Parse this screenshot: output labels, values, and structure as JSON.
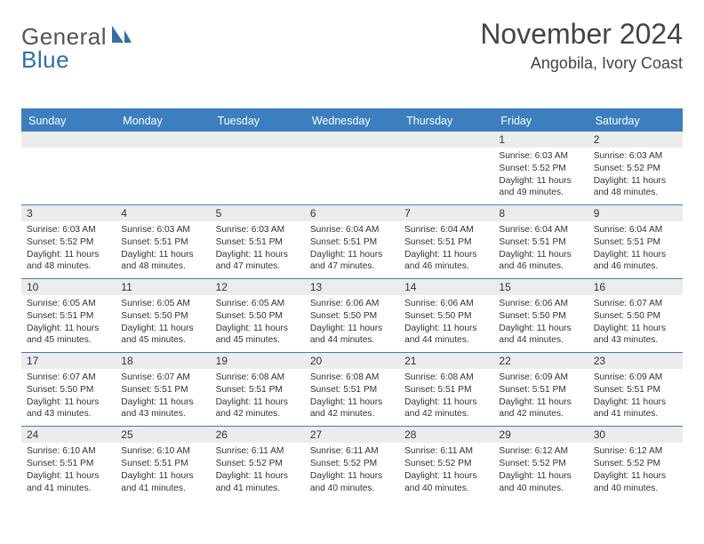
{
  "brand": {
    "word1": "General",
    "word2": "Blue",
    "text_color": "#555555",
    "accent_color": "#2f6fab"
  },
  "header": {
    "month_title": "November 2024",
    "location": "Angobila, Ivory Coast"
  },
  "colors": {
    "header_bg": "#3b7fbf",
    "header_fg": "#ffffff",
    "row_divider": "#3b7fbf",
    "daynum_bg": "#ececec",
    "text": "#333333",
    "background": "#ffffff"
  },
  "fonts": {
    "title_size": 32,
    "location_size": 18,
    "weekday_size": 12.5,
    "cell_size": 10.2
  },
  "weekdays": [
    "Sunday",
    "Monday",
    "Tuesday",
    "Wednesday",
    "Thursday",
    "Friday",
    "Saturday"
  ],
  "weeks": [
    [
      {
        "day": ""
      },
      {
        "day": ""
      },
      {
        "day": ""
      },
      {
        "day": ""
      },
      {
        "day": ""
      },
      {
        "day": "1",
        "sunrise": "Sunrise: 6:03 AM",
        "sunset": "Sunset: 5:52 PM",
        "daylight1": "Daylight: 11 hours",
        "daylight2": "and 49 minutes."
      },
      {
        "day": "2",
        "sunrise": "Sunrise: 6:03 AM",
        "sunset": "Sunset: 5:52 PM",
        "daylight1": "Daylight: 11 hours",
        "daylight2": "and 48 minutes."
      }
    ],
    [
      {
        "day": "3",
        "sunrise": "Sunrise: 6:03 AM",
        "sunset": "Sunset: 5:52 PM",
        "daylight1": "Daylight: 11 hours",
        "daylight2": "and 48 minutes."
      },
      {
        "day": "4",
        "sunrise": "Sunrise: 6:03 AM",
        "sunset": "Sunset: 5:51 PM",
        "daylight1": "Daylight: 11 hours",
        "daylight2": "and 48 minutes."
      },
      {
        "day": "5",
        "sunrise": "Sunrise: 6:03 AM",
        "sunset": "Sunset: 5:51 PM",
        "daylight1": "Daylight: 11 hours",
        "daylight2": "and 47 minutes."
      },
      {
        "day": "6",
        "sunrise": "Sunrise: 6:04 AM",
        "sunset": "Sunset: 5:51 PM",
        "daylight1": "Daylight: 11 hours",
        "daylight2": "and 47 minutes."
      },
      {
        "day": "7",
        "sunrise": "Sunrise: 6:04 AM",
        "sunset": "Sunset: 5:51 PM",
        "daylight1": "Daylight: 11 hours",
        "daylight2": "and 46 minutes."
      },
      {
        "day": "8",
        "sunrise": "Sunrise: 6:04 AM",
        "sunset": "Sunset: 5:51 PM",
        "daylight1": "Daylight: 11 hours",
        "daylight2": "and 46 minutes."
      },
      {
        "day": "9",
        "sunrise": "Sunrise: 6:04 AM",
        "sunset": "Sunset: 5:51 PM",
        "daylight1": "Daylight: 11 hours",
        "daylight2": "and 46 minutes."
      }
    ],
    [
      {
        "day": "10",
        "sunrise": "Sunrise: 6:05 AM",
        "sunset": "Sunset: 5:51 PM",
        "daylight1": "Daylight: 11 hours",
        "daylight2": "and 45 minutes."
      },
      {
        "day": "11",
        "sunrise": "Sunrise: 6:05 AM",
        "sunset": "Sunset: 5:50 PM",
        "daylight1": "Daylight: 11 hours",
        "daylight2": "and 45 minutes."
      },
      {
        "day": "12",
        "sunrise": "Sunrise: 6:05 AM",
        "sunset": "Sunset: 5:50 PM",
        "daylight1": "Daylight: 11 hours",
        "daylight2": "and 45 minutes."
      },
      {
        "day": "13",
        "sunrise": "Sunrise: 6:06 AM",
        "sunset": "Sunset: 5:50 PM",
        "daylight1": "Daylight: 11 hours",
        "daylight2": "and 44 minutes."
      },
      {
        "day": "14",
        "sunrise": "Sunrise: 6:06 AM",
        "sunset": "Sunset: 5:50 PM",
        "daylight1": "Daylight: 11 hours",
        "daylight2": "and 44 minutes."
      },
      {
        "day": "15",
        "sunrise": "Sunrise: 6:06 AM",
        "sunset": "Sunset: 5:50 PM",
        "daylight1": "Daylight: 11 hours",
        "daylight2": "and 44 minutes."
      },
      {
        "day": "16",
        "sunrise": "Sunrise: 6:07 AM",
        "sunset": "Sunset: 5:50 PM",
        "daylight1": "Daylight: 11 hours",
        "daylight2": "and 43 minutes."
      }
    ],
    [
      {
        "day": "17",
        "sunrise": "Sunrise: 6:07 AM",
        "sunset": "Sunset: 5:50 PM",
        "daylight1": "Daylight: 11 hours",
        "daylight2": "and 43 minutes."
      },
      {
        "day": "18",
        "sunrise": "Sunrise: 6:07 AM",
        "sunset": "Sunset: 5:51 PM",
        "daylight1": "Daylight: 11 hours",
        "daylight2": "and 43 minutes."
      },
      {
        "day": "19",
        "sunrise": "Sunrise: 6:08 AM",
        "sunset": "Sunset: 5:51 PM",
        "daylight1": "Daylight: 11 hours",
        "daylight2": "and 42 minutes."
      },
      {
        "day": "20",
        "sunrise": "Sunrise: 6:08 AM",
        "sunset": "Sunset: 5:51 PM",
        "daylight1": "Daylight: 11 hours",
        "daylight2": "and 42 minutes."
      },
      {
        "day": "21",
        "sunrise": "Sunrise: 6:08 AM",
        "sunset": "Sunset: 5:51 PM",
        "daylight1": "Daylight: 11 hours",
        "daylight2": "and 42 minutes."
      },
      {
        "day": "22",
        "sunrise": "Sunrise: 6:09 AM",
        "sunset": "Sunset: 5:51 PM",
        "daylight1": "Daylight: 11 hours",
        "daylight2": "and 42 minutes."
      },
      {
        "day": "23",
        "sunrise": "Sunrise: 6:09 AM",
        "sunset": "Sunset: 5:51 PM",
        "daylight1": "Daylight: 11 hours",
        "daylight2": "and 41 minutes."
      }
    ],
    [
      {
        "day": "24",
        "sunrise": "Sunrise: 6:10 AM",
        "sunset": "Sunset: 5:51 PM",
        "daylight1": "Daylight: 11 hours",
        "daylight2": "and 41 minutes."
      },
      {
        "day": "25",
        "sunrise": "Sunrise: 6:10 AM",
        "sunset": "Sunset: 5:51 PM",
        "daylight1": "Daylight: 11 hours",
        "daylight2": "and 41 minutes."
      },
      {
        "day": "26",
        "sunrise": "Sunrise: 6:11 AM",
        "sunset": "Sunset: 5:52 PM",
        "daylight1": "Daylight: 11 hours",
        "daylight2": "and 41 minutes."
      },
      {
        "day": "27",
        "sunrise": "Sunrise: 6:11 AM",
        "sunset": "Sunset: 5:52 PM",
        "daylight1": "Daylight: 11 hours",
        "daylight2": "and 40 minutes."
      },
      {
        "day": "28",
        "sunrise": "Sunrise: 6:11 AM",
        "sunset": "Sunset: 5:52 PM",
        "daylight1": "Daylight: 11 hours",
        "daylight2": "and 40 minutes."
      },
      {
        "day": "29",
        "sunrise": "Sunrise: 6:12 AM",
        "sunset": "Sunset: 5:52 PM",
        "daylight1": "Daylight: 11 hours",
        "daylight2": "and 40 minutes."
      },
      {
        "day": "30",
        "sunrise": "Sunrise: 6:12 AM",
        "sunset": "Sunset: 5:52 PM",
        "daylight1": "Daylight: 11 hours",
        "daylight2": "and 40 minutes."
      }
    ]
  ]
}
